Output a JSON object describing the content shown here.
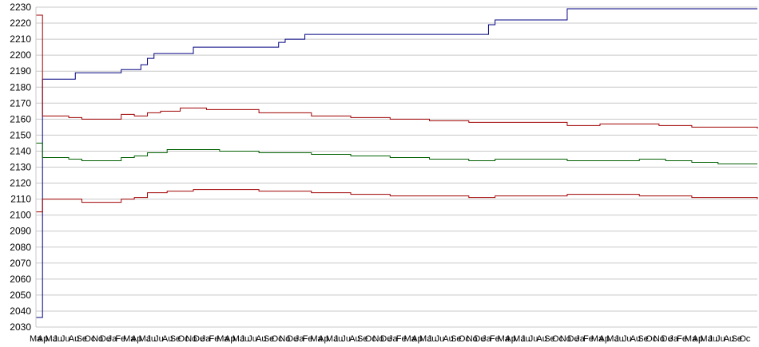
{
  "chart_data": {
    "type": "line",
    "title": "",
    "xlabel": "",
    "ylabel": "",
    "ylim": [
      2030,
      2230
    ],
    "yticks": [
      2030,
      2040,
      2050,
      2060,
      2070,
      2080,
      2090,
      2100,
      2110,
      2120,
      2130,
      2140,
      2150,
      2160,
      2170,
      2180,
      2190,
      2200,
      2210,
      2220,
      2230
    ],
    "grid": true,
    "legend": "none",
    "x_tick_labels": [
      "Ma",
      "Ap",
      "Ma",
      "Ju",
      "Ju",
      "Au",
      "Se",
      "Oc",
      "No",
      "De",
      "Ja",
      "Fe",
      "Ma",
      "Ap",
      "Ma",
      "Ju",
      "Ju",
      "Au",
      "Se",
      "Oc",
      "No",
      "De",
      "Ja",
      "Fe",
      "Ma",
      "Ap",
      "Ma",
      "Ju",
      "Ju",
      "Au",
      "Se",
      "Oc",
      "No",
      "De",
      "Ja",
      "Fe",
      "Ma",
      "Ap",
      "Ma",
      "Ju",
      "Ju",
      "Au",
      "Se",
      "Oc",
      "No",
      "De",
      "Ja",
      "Fe",
      "Ma",
      "Ap",
      "Ma",
      "Ju",
      "Ju",
      "Au",
      "Se",
      "Oc",
      "No",
      "De",
      "Ja",
      "Fe",
      "Ma",
      "Ap",
      "Ma",
      "Ju",
      "Ju",
      "Au",
      "Se",
      "Oc",
      "No",
      "De",
      "Ja",
      "Fe",
      "Ma",
      "Ap",
      "Ma",
      "Ju",
      "Ju",
      "Au",
      "Se",
      "Oc",
      "No",
      "De",
      "Ja",
      "Fe",
      "Ma",
      "Ap",
      "Ma",
      "Ju",
      "Ju",
      "Au",
      "Se",
      "Oc"
    ],
    "series": [
      {
        "color": "#000080",
        "points": [
          [
            0,
            2036
          ],
          [
            1,
            2185
          ],
          [
            5,
            2185
          ],
          [
            6,
            2189
          ],
          [
            12,
            2189
          ],
          [
            13,
            2191
          ],
          [
            15,
            2191
          ],
          [
            16,
            2194
          ],
          [
            17,
            2198
          ],
          [
            18,
            2201
          ],
          [
            23,
            2201
          ],
          [
            24,
            2205
          ],
          [
            36,
            2205
          ],
          [
            37,
            2208
          ],
          [
            38,
            2210
          ],
          [
            40,
            2210
          ],
          [
            41,
            2213
          ],
          [
            68,
            2213
          ],
          [
            69,
            2219
          ],
          [
            70,
            2222
          ],
          [
            80,
            2222
          ],
          [
            81,
            2229
          ],
          [
            110,
            2229
          ]
        ]
      },
      {
        "color": "#a00000",
        "points": [
          [
            0,
            2225
          ],
          [
            1,
            2162
          ],
          [
            5,
            2161
          ],
          [
            7,
            2160
          ],
          [
            12,
            2160
          ],
          [
            13,
            2163
          ],
          [
            15,
            2162
          ],
          [
            17,
            2164
          ],
          [
            19,
            2165
          ],
          [
            22,
            2167
          ],
          [
            24,
            2167
          ],
          [
            26,
            2166
          ],
          [
            30,
            2166
          ],
          [
            34,
            2164
          ],
          [
            38,
            2164
          ],
          [
            42,
            2162
          ],
          [
            48,
            2161
          ],
          [
            54,
            2160
          ],
          [
            60,
            2159
          ],
          [
            66,
            2158
          ],
          [
            72,
            2158
          ],
          [
            78,
            2158
          ],
          [
            81,
            2156
          ],
          [
            86,
            2157
          ],
          [
            92,
            2157
          ],
          [
            95,
            2156
          ],
          [
            100,
            2155
          ],
          [
            104,
            2155
          ],
          [
            110,
            2154
          ]
        ]
      },
      {
        "color": "#006000",
        "points": [
          [
            0,
            2145
          ],
          [
            1,
            2136
          ],
          [
            5,
            2135
          ],
          [
            7,
            2134
          ],
          [
            12,
            2134
          ],
          [
            13,
            2136
          ],
          [
            15,
            2137
          ],
          [
            17,
            2139
          ],
          [
            20,
            2141
          ],
          [
            24,
            2141
          ],
          [
            28,
            2140
          ],
          [
            34,
            2139
          ],
          [
            38,
            2139
          ],
          [
            42,
            2138
          ],
          [
            48,
            2137
          ],
          [
            54,
            2136
          ],
          [
            60,
            2135
          ],
          [
            66,
            2134
          ],
          [
            70,
            2135
          ],
          [
            76,
            2135
          ],
          [
            81,
            2134
          ],
          [
            86,
            2134
          ],
          [
            92,
            2135
          ],
          [
            96,
            2134
          ],
          [
            100,
            2133
          ],
          [
            104,
            2132
          ],
          [
            110,
            2132
          ]
        ]
      },
      {
        "color": "#a00000",
        "points": [
          [
            0,
            2102
          ],
          [
            1,
            2110
          ],
          [
            5,
            2110
          ],
          [
            7,
            2108
          ],
          [
            12,
            2108
          ],
          [
            13,
            2110
          ],
          [
            15,
            2111
          ],
          [
            17,
            2114
          ],
          [
            20,
            2115
          ],
          [
            24,
            2116
          ],
          [
            28,
            2116
          ],
          [
            34,
            2115
          ],
          [
            38,
            2115
          ],
          [
            42,
            2114
          ],
          [
            48,
            2113
          ],
          [
            54,
            2112
          ],
          [
            60,
            2112
          ],
          [
            66,
            2111
          ],
          [
            70,
            2112
          ],
          [
            76,
            2112
          ],
          [
            81,
            2113
          ],
          [
            86,
            2113
          ],
          [
            92,
            2112
          ],
          [
            96,
            2112
          ],
          [
            100,
            2111
          ],
          [
            104,
            2111
          ],
          [
            110,
            2110
          ]
        ]
      }
    ]
  }
}
